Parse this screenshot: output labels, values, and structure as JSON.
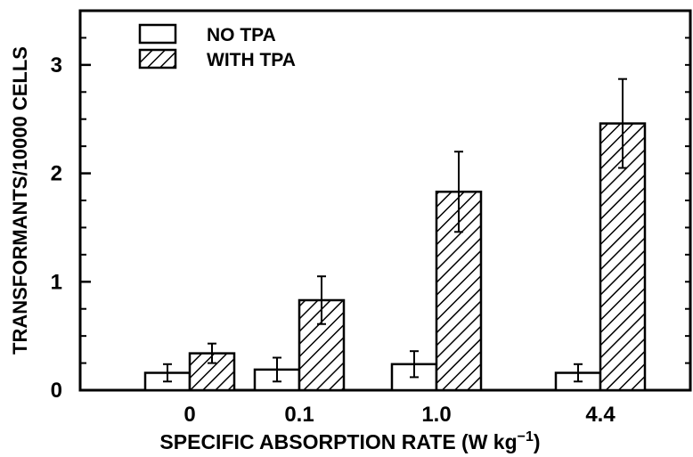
{
  "chart_data": {
    "type": "bar",
    "title": "",
    "xlabel": "SPECIFIC ABSORPTION RATE (W kg",
    "xlabel_sup": "−1",
    "xlabel_close": ")",
    "ylabel": "TRANSFORMANTS/10000 CELLS",
    "categories": [
      "0",
      "0.1",
      "1.0",
      "4.4"
    ],
    "ylim": [
      0,
      3.5
    ],
    "yticks": [
      0,
      1,
      2,
      3
    ],
    "ytick_labels": [
      "0",
      "1",
      "2",
      "3"
    ],
    "legend_position": "top-left",
    "series": [
      {
        "name": "NO TPA",
        "fill": "white",
        "values": [
          0.16,
          0.19,
          0.24,
          0.16
        ],
        "errors": [
          0.08,
          0.11,
          0.12,
          0.08
        ]
      },
      {
        "name": "WITH TPA",
        "fill": "hatched",
        "values": [
          0.34,
          0.83,
          1.83,
          2.46
        ],
        "errors": [
          0.09,
          0.22,
          0.37,
          0.41
        ]
      }
    ],
    "colors": {
      "stroke": "#000000",
      "background": "#ffffff"
    }
  }
}
